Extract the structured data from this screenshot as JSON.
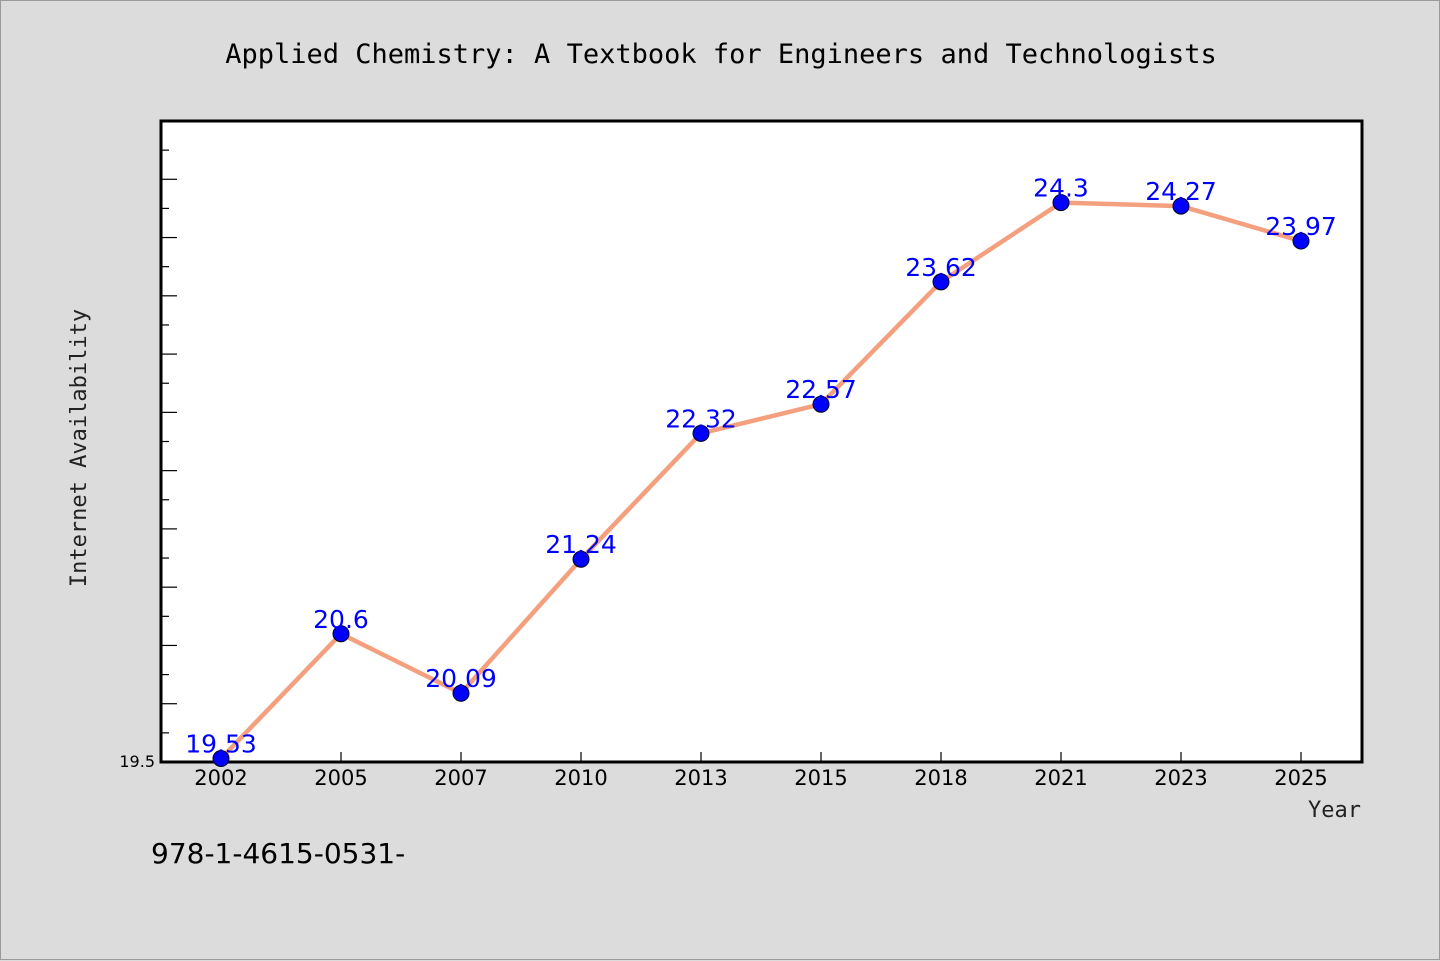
{
  "footer": "978-1-4615-0531-",
  "colors": {
    "background": "#dcdcdc",
    "plot_background": "#ffffff",
    "line": "#f4a07e",
    "marker": "#0000ff",
    "data_label": "#0000ff"
  },
  "chart_data": {
    "type": "line",
    "title": "Applied Chemistry: A Textbook for Engineers and Technologists",
    "xlabel": "Year",
    "ylabel": "Internet Availability",
    "categories": [
      "2002",
      "2005",
      "2007",
      "2010",
      "2013",
      "2015",
      "2018",
      "2021",
      "2023",
      "2025"
    ],
    "series": [
      {
        "values": [
          19.53,
          20.6,
          20.09,
          21.24,
          22.32,
          22.57,
          23.62,
          24.3,
          24.27,
          23.97
        ]
      }
    ],
    "ylim": [
      19.5,
      25.0
    ],
    "yticks_labeled": [
      "19.5"
    ],
    "grid": false,
    "legend": "none",
    "markers": "circle",
    "data_labels": true
  }
}
